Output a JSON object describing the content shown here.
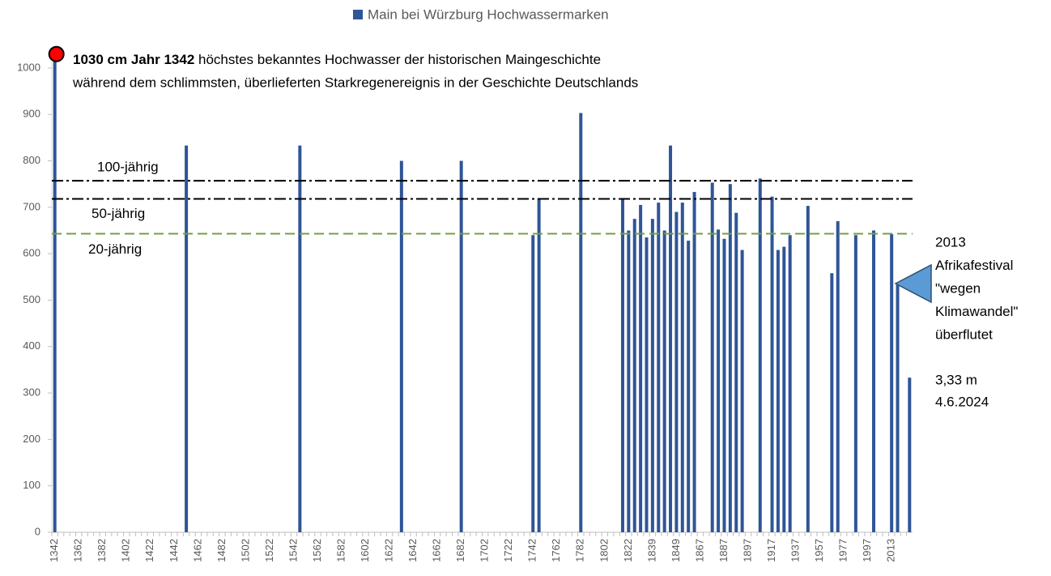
{
  "chart_data": {
    "type": "bar",
    "legend": "Main bei Würzburg Hochwassermarken",
    "color": "#2f5597",
    "categories": [
      "1342",
      null,
      null,
      null,
      "1362",
      null,
      null,
      null,
      "1382",
      null,
      null,
      null,
      "1402",
      null,
      null,
      null,
      "1422",
      null,
      null,
      null,
      "1442",
      null,
      null,
      null,
      "1462",
      null,
      null,
      null,
      "1482",
      null,
      null,
      null,
      "1502",
      null,
      null,
      null,
      "1522",
      null,
      null,
      null,
      "1542",
      null,
      null,
      null,
      "1562",
      null,
      null,
      null,
      "1582",
      null,
      null,
      null,
      "1602",
      null,
      null,
      null,
      "1622",
      null,
      null,
      null,
      "1642",
      null,
      null,
      null,
      "1662",
      null,
      null,
      null,
      "1682",
      null,
      null,
      null,
      "1702",
      null,
      null,
      null,
      "1722",
      null,
      null,
      null,
      "1742",
      null,
      null,
      null,
      "1762",
      null,
      null,
      null,
      "1782",
      null,
      null,
      null,
      "1802",
      null,
      null,
      null,
      "1822",
      null,
      null,
      null,
      "1839",
      null,
      null,
      null,
      "1849",
      null,
      null,
      null,
      "1867",
      null,
      null,
      null,
      "1887",
      null,
      null,
      null,
      "1897",
      null,
      null,
      null,
      "1917",
      null,
      null,
      null,
      "1937",
      null,
      null,
      null,
      "1957",
      null,
      null,
      null,
      "1977",
      null,
      null,
      null,
      "1997",
      null,
      null,
      null,
      "2013",
      null,
      null,
      null
    ],
    "values": [
      1030,
      null,
      null,
      null,
      null,
      null,
      null,
      null,
      null,
      null,
      null,
      null,
      null,
      null,
      null,
      null,
      null,
      null,
      null,
      null,
      null,
      null,
      833,
      null,
      null,
      null,
      null,
      null,
      null,
      null,
      null,
      null,
      null,
      null,
      null,
      null,
      null,
      null,
      null,
      null,
      null,
      833,
      null,
      null,
      null,
      null,
      null,
      null,
      null,
      null,
      null,
      null,
      null,
      null,
      null,
      null,
      null,
      null,
      800,
      null,
      null,
      null,
      null,
      null,
      null,
      null,
      null,
      null,
      800,
      null,
      null,
      null,
      null,
      null,
      null,
      null,
      null,
      null,
      null,
      null,
      640,
      718,
      null,
      null,
      null,
      null,
      null,
      null,
      903,
      null,
      null,
      null,
      null,
      null,
      null,
      718,
      650,
      675,
      705,
      635,
      675,
      710,
      650,
      833,
      690,
      710,
      628,
      733,
      null,
      null,
      753,
      652,
      632,
      750,
      688,
      608,
      null,
      null,
      762,
      null,
      723,
      608,
      615,
      640,
      null,
      null,
      703,
      null,
      null,
      null,
      558,
      670,
      null,
      null,
      640,
      null,
      null,
      650,
      null,
      null,
      642,
      533,
      null,
      333
    ],
    "ylim": [
      0,
      1040
    ],
    "yticks": [
      0,
      100,
      200,
      300,
      400,
      500,
      600,
      700,
      800,
      900,
      1000
    ],
    "reference_lines": [
      {
        "label": "100-jährig",
        "value": 757,
        "color": "#000000",
        "dash": "14 4 3 4"
      },
      {
        "label": "50-jährig",
        "value": 718,
        "color": "#000000",
        "dash": "14 4 3 4"
      },
      {
        "label": "20-jährig",
        "value": 643,
        "color": "#70a044",
        "dash": "12 6"
      }
    ],
    "note_bold": "1030 cm Jahr 1342",
    "note_line1": " höchstes bekanntes Hochwasser der historischen Maingeschichte",
    "note_line2": "während dem schlimmsten, überlieferten Starkregenereignis in der Geschichte Deutschlands",
    "callout_lines": [
      "2013",
      "Afrikafestival",
      "\"wegen",
      "Klimawandel\"",
      "überflutet"
    ],
    "callout2_lines": [
      "3,33 m",
      "4.6.2024"
    ]
  }
}
